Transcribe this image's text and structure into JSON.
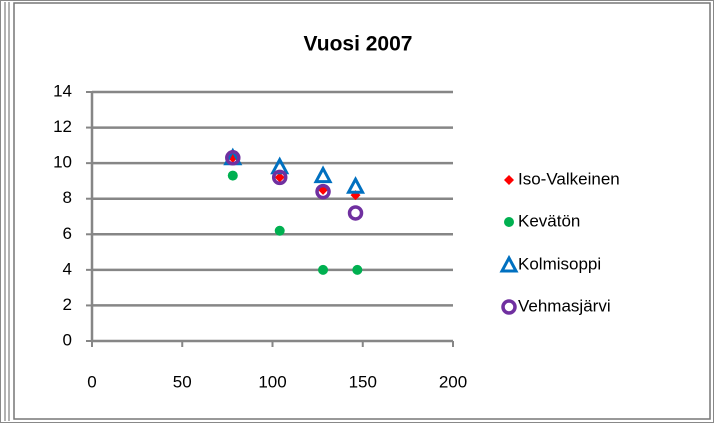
{
  "chart_data": {
    "type": "scatter",
    "title": "Vuosi 2007",
    "xlim": [
      0,
      200
    ],
    "xticks": [
      0,
      50,
      100,
      150,
      200
    ],
    "ylim": [
      0,
      14
    ],
    "yticks": [
      0,
      2,
      4,
      6,
      8,
      10,
      12,
      14
    ],
    "grid": true,
    "legend": "right",
    "series": [
      {
        "name": "Iso-Valkeinen",
        "color": "#ff0000",
        "marker": "diamond",
        "x": [
          78,
          104,
          128,
          146
        ],
        "values": [
          10.3,
          9.2,
          8.5,
          8.2
        ]
      },
      {
        "name": "Kevätön",
        "color": "#00b050",
        "marker": "circle",
        "x": [
          78,
          104,
          128,
          147
        ],
        "values": [
          9.3,
          6.2,
          4,
          4
        ]
      },
      {
        "name": "Kolmisoppi",
        "color": "#0070c0",
        "marker": "triangle",
        "x": [
          78,
          104,
          128,
          146
        ],
        "values": [
          10.3,
          9.8,
          9.3,
          8.7
        ]
      },
      {
        "name": "Vehmasjärvi",
        "color": "#7030a0",
        "marker": "ring",
        "x": [
          78,
          104,
          128,
          146
        ],
        "values": [
          10.3,
          9.2,
          8.4,
          7.2
        ]
      }
    ]
  }
}
